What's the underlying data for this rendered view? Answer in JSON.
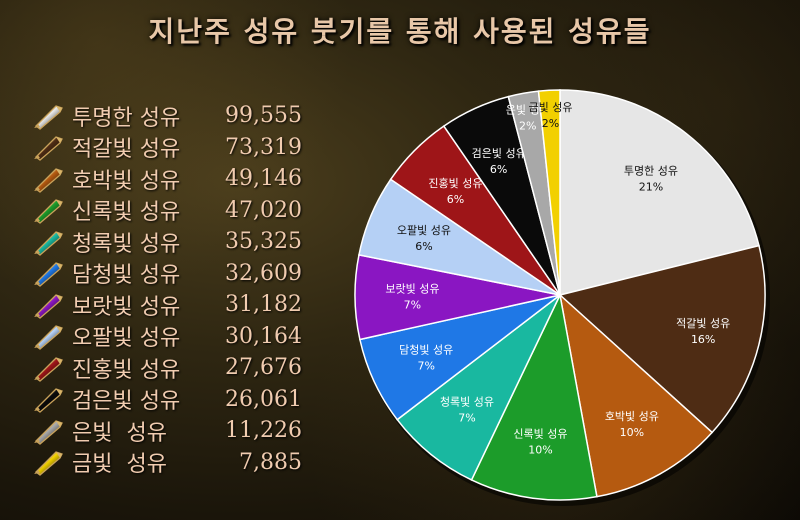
{
  "title": "지난주 성유 붓기를 통해 사용된 성유들",
  "chart_data": {
    "type": "pie",
    "title": "지난주 성유 붓기를 통해 사용된 성유들",
    "slices": [
      {
        "label": "투명한 성유",
        "value": 99555,
        "value_text": "99,555",
        "percent_text": "21%",
        "color": "#e6e6e6",
        "text_color": "#111111"
      },
      {
        "label": "적갈빛 성유",
        "value": 73319,
        "value_text": "73,319",
        "percent_text": "16%",
        "color": "#4e2c14",
        "text_color": "#ffffff"
      },
      {
        "label": "호박빛 성유",
        "value": 49146,
        "value_text": "49,146",
        "percent_text": "10%",
        "color": "#b55a10",
        "text_color": "#ffffff"
      },
      {
        "label": "신록빛 성유",
        "value": 47020,
        "value_text": "47,020",
        "percent_text": "10%",
        "color": "#1c9c2a",
        "text_color": "#ffffff"
      },
      {
        "label": "청록빛 성유",
        "value": 35325,
        "value_text": "35,325",
        "percent_text": "7%",
        "color": "#19b8a0",
        "text_color": "#ffffff"
      },
      {
        "label": "담청빛 성유",
        "value": 32609,
        "value_text": "32,609",
        "percent_text": "7%",
        "color": "#1f78e6",
        "text_color": "#ffffff"
      },
      {
        "label": "보랏빛 성유",
        "value": 31182,
        "value_text": "31,182",
        "percent_text": "7%",
        "color": "#8a16c2",
        "text_color": "#ffffff"
      },
      {
        "label": "오팔빛 성유",
        "value": 30164,
        "value_text": "30,164",
        "percent_text": "6%",
        "color": "#b5d0f5",
        "text_color": "#111111"
      },
      {
        "label": "진홍빛 성유",
        "value": 27676,
        "value_text": "27,676",
        "percent_text": "6%",
        "color": "#9e1518",
        "text_color": "#ffffff"
      },
      {
        "label": "검은빛 성유",
        "value": 26061,
        "value_text": "26,061",
        "percent_text": "6%",
        "color": "#0a0a0a",
        "text_color": "#ffffff"
      },
      {
        "label": "은빛  성유",
        "value": 11226,
        "value_text": "11,226",
        "percent_text": "2%",
        "color": "#a8a8a8",
        "text_color": "#ffffff"
      },
      {
        "label": "금빛  성유",
        "value": 7885,
        "value_text": "7,885",
        "percent_text": "2%",
        "color": "#f2d000",
        "text_color": "#111111"
      }
    ]
  },
  "legend_gem_icons": [
    "clear-gem-icon",
    "reddish-brown-gem-icon",
    "amber-gem-icon",
    "green-gem-icon",
    "teal-gem-icon",
    "blue-gem-icon",
    "purple-gem-icon",
    "opal-gem-icon",
    "crimson-gem-icon",
    "black-gem-icon",
    "silver-gem-icon",
    "gold-gem-icon"
  ]
}
